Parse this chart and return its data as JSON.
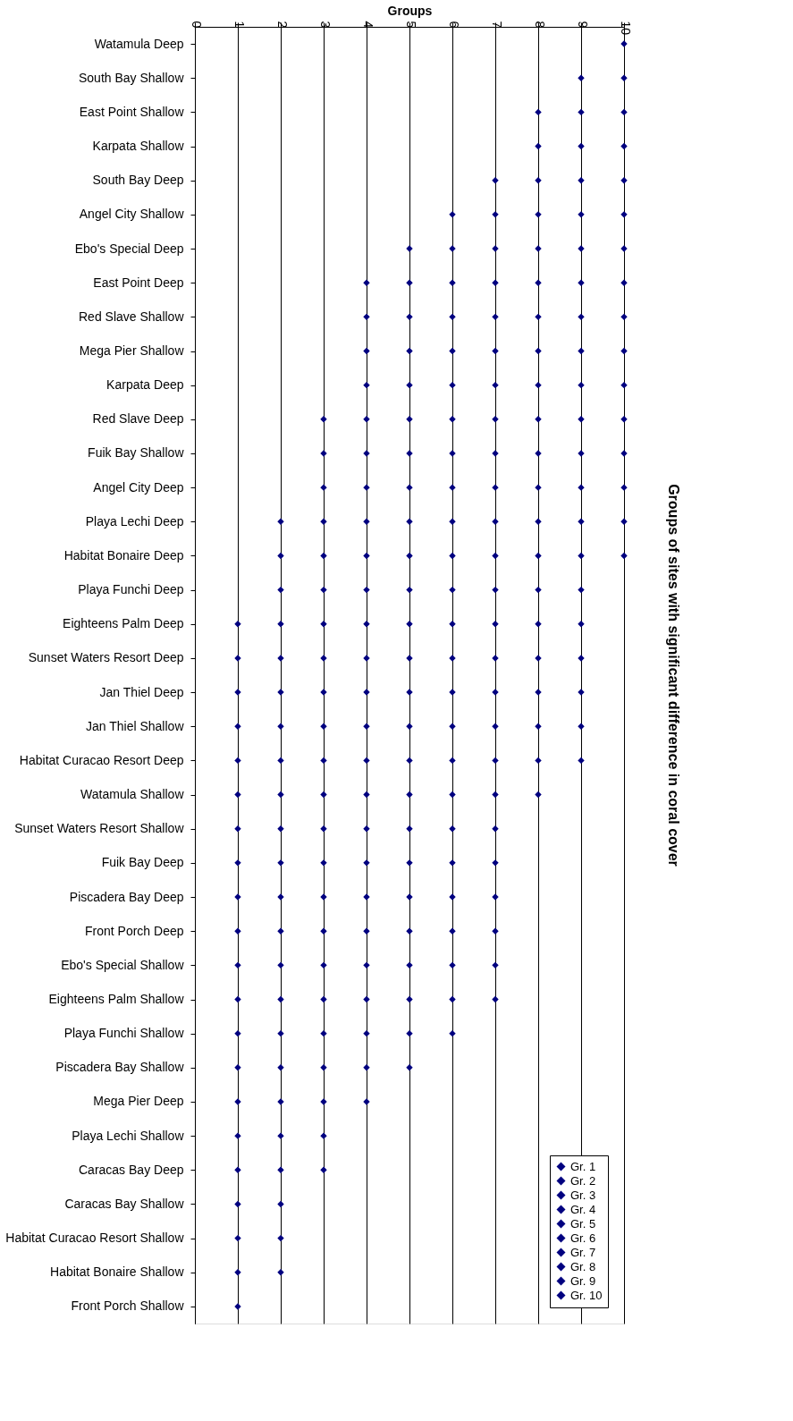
{
  "chart_data": {
    "type": "scatter",
    "title": "Groups of sites with significant difference in coral cover",
    "xlabel": "Groups",
    "orientation": "horizontal",
    "categories": [
      "Watamula Deep",
      "South Bay Shallow",
      "East Point Shallow",
      "Karpata Shallow",
      "South Bay Deep",
      "Angel City Shallow",
      "Ebo's Special Deep",
      "East Point Deep",
      "Red Slave Shallow",
      "Mega Pier Shallow",
      "Karpata Deep",
      "Red Slave Deep",
      "Fuik Bay Shallow",
      "Angel City Deep",
      "Playa Lechi Deep",
      "Habitat Bonaire Deep",
      "Playa Funchi Deep",
      "Eighteens Palm Deep",
      "Sunset Waters Resort Deep",
      "Jan Thiel Deep",
      "Jan Thiel Shallow",
      "Habitat Curacao Resort Deep",
      "Watamula Shallow",
      "Sunset Waters Resort Shallow",
      "Fuik Bay Deep",
      "Piscadera Bay Deep",
      "Front Porch Deep",
      "Ebo's Special Shallow",
      "Eighteens Palm Shallow",
      "Playa Funchi Shallow",
      "Piscadera Bay Shallow",
      "Mega Pier Deep",
      "Playa Lechi Shallow",
      "Caracas Bay Deep",
      "Caracas Bay Shallow",
      "Habitat Curacao Resort Shallow",
      "Habitat Bonaire Shallow",
      "Front Porch Shallow"
    ],
    "series": [
      {
        "name": "Gr. 1",
        "color": "#000080",
        "values": [
          null,
          null,
          null,
          null,
          null,
          null,
          null,
          null,
          null,
          null,
          null,
          null,
          null,
          null,
          null,
          null,
          null,
          1,
          1,
          1,
          1,
          1,
          1,
          1,
          1,
          1,
          1,
          1,
          1,
          1,
          1,
          1,
          1,
          1,
          1,
          1,
          1,
          1
        ]
      },
      {
        "name": "Gr. 2",
        "color": "#000080",
        "values": [
          null,
          null,
          null,
          null,
          null,
          null,
          null,
          null,
          null,
          null,
          null,
          null,
          null,
          null,
          2,
          2,
          2,
          2,
          2,
          2,
          2,
          2,
          2,
          2,
          2,
          2,
          2,
          2,
          2,
          2,
          2,
          2,
          2,
          2,
          2,
          2,
          2,
          null
        ]
      },
      {
        "name": "Gr. 3",
        "color": "#000080",
        "values": [
          null,
          null,
          null,
          null,
          null,
          null,
          null,
          null,
          null,
          null,
          null,
          3,
          3,
          3,
          3,
          3,
          3,
          3,
          3,
          3,
          3,
          3,
          3,
          3,
          3,
          3,
          3,
          3,
          3,
          3,
          3,
          3,
          3,
          3,
          null,
          null,
          null,
          null
        ]
      },
      {
        "name": "Gr. 4",
        "color": "#000080",
        "values": [
          null,
          null,
          null,
          null,
          null,
          null,
          null,
          4,
          4,
          4,
          4,
          4,
          4,
          4,
          4,
          4,
          4,
          4,
          4,
          4,
          4,
          4,
          4,
          4,
          4,
          4,
          4,
          4,
          4,
          4,
          4,
          4,
          null,
          null,
          null,
          null,
          null,
          null
        ]
      },
      {
        "name": "Gr. 5",
        "color": "#000080",
        "values": [
          null,
          null,
          null,
          null,
          null,
          null,
          5,
          5,
          5,
          5,
          5,
          5,
          5,
          5,
          5,
          5,
          5,
          5,
          5,
          5,
          5,
          5,
          5,
          5,
          5,
          5,
          5,
          5,
          5,
          5,
          5,
          null,
          null,
          null,
          null,
          null,
          null,
          null
        ]
      },
      {
        "name": "Gr. 6",
        "color": "#000080",
        "values": [
          null,
          null,
          null,
          null,
          null,
          6,
          6,
          6,
          6,
          6,
          6,
          6,
          6,
          6,
          6,
          6,
          6,
          6,
          6,
          6,
          6,
          6,
          6,
          6,
          6,
          6,
          6,
          6,
          6,
          6,
          null,
          null,
          null,
          null,
          null,
          null,
          null,
          null
        ]
      },
      {
        "name": "Gr. 7",
        "color": "#000080",
        "values": [
          null,
          null,
          null,
          null,
          7,
          7,
          7,
          7,
          7,
          7,
          7,
          7,
          7,
          7,
          7,
          7,
          7,
          7,
          7,
          7,
          7,
          7,
          7,
          7,
          7,
          7,
          7,
          7,
          7,
          null,
          null,
          null,
          null,
          null,
          null,
          null,
          null,
          null
        ]
      },
      {
        "name": "Gr. 8",
        "color": "#000080",
        "values": [
          null,
          null,
          8,
          8,
          8,
          8,
          8,
          8,
          8,
          8,
          8,
          8,
          8,
          8,
          8,
          8,
          8,
          8,
          8,
          8,
          8,
          8,
          8,
          null,
          null,
          null,
          null,
          null,
          null,
          null,
          null,
          null,
          null,
          null,
          null,
          null,
          null,
          null
        ]
      },
      {
        "name": "Gr. 9",
        "color": "#000080",
        "values": [
          null,
          9,
          9,
          9,
          9,
          9,
          9,
          9,
          9,
          9,
          9,
          9,
          9,
          9,
          9,
          9,
          9,
          9,
          9,
          9,
          9,
          9,
          null,
          null,
          null,
          null,
          null,
          null,
          null,
          null,
          null,
          null,
          null,
          null,
          null,
          null,
          null,
          null
        ]
      },
      {
        "name": "Gr. 10",
        "color": "#000080",
        "values": [
          10,
          10,
          10,
          10,
          10,
          10,
          10,
          10,
          10,
          10,
          10,
          10,
          10,
          10,
          10,
          10,
          null,
          null,
          null,
          null,
          null,
          null,
          null,
          null,
          null,
          null,
          null,
          null,
          null,
          null,
          null,
          null,
          null,
          null,
          null,
          null,
          null,
          null
        ]
      }
    ],
    "xlim": [
      0,
      10
    ],
    "xticks": [
      0,
      1,
      2,
      3,
      4,
      5,
      6,
      7,
      8,
      9,
      10
    ],
    "grid": "x",
    "legend": "bottom right",
    "marker": "diamond"
  }
}
